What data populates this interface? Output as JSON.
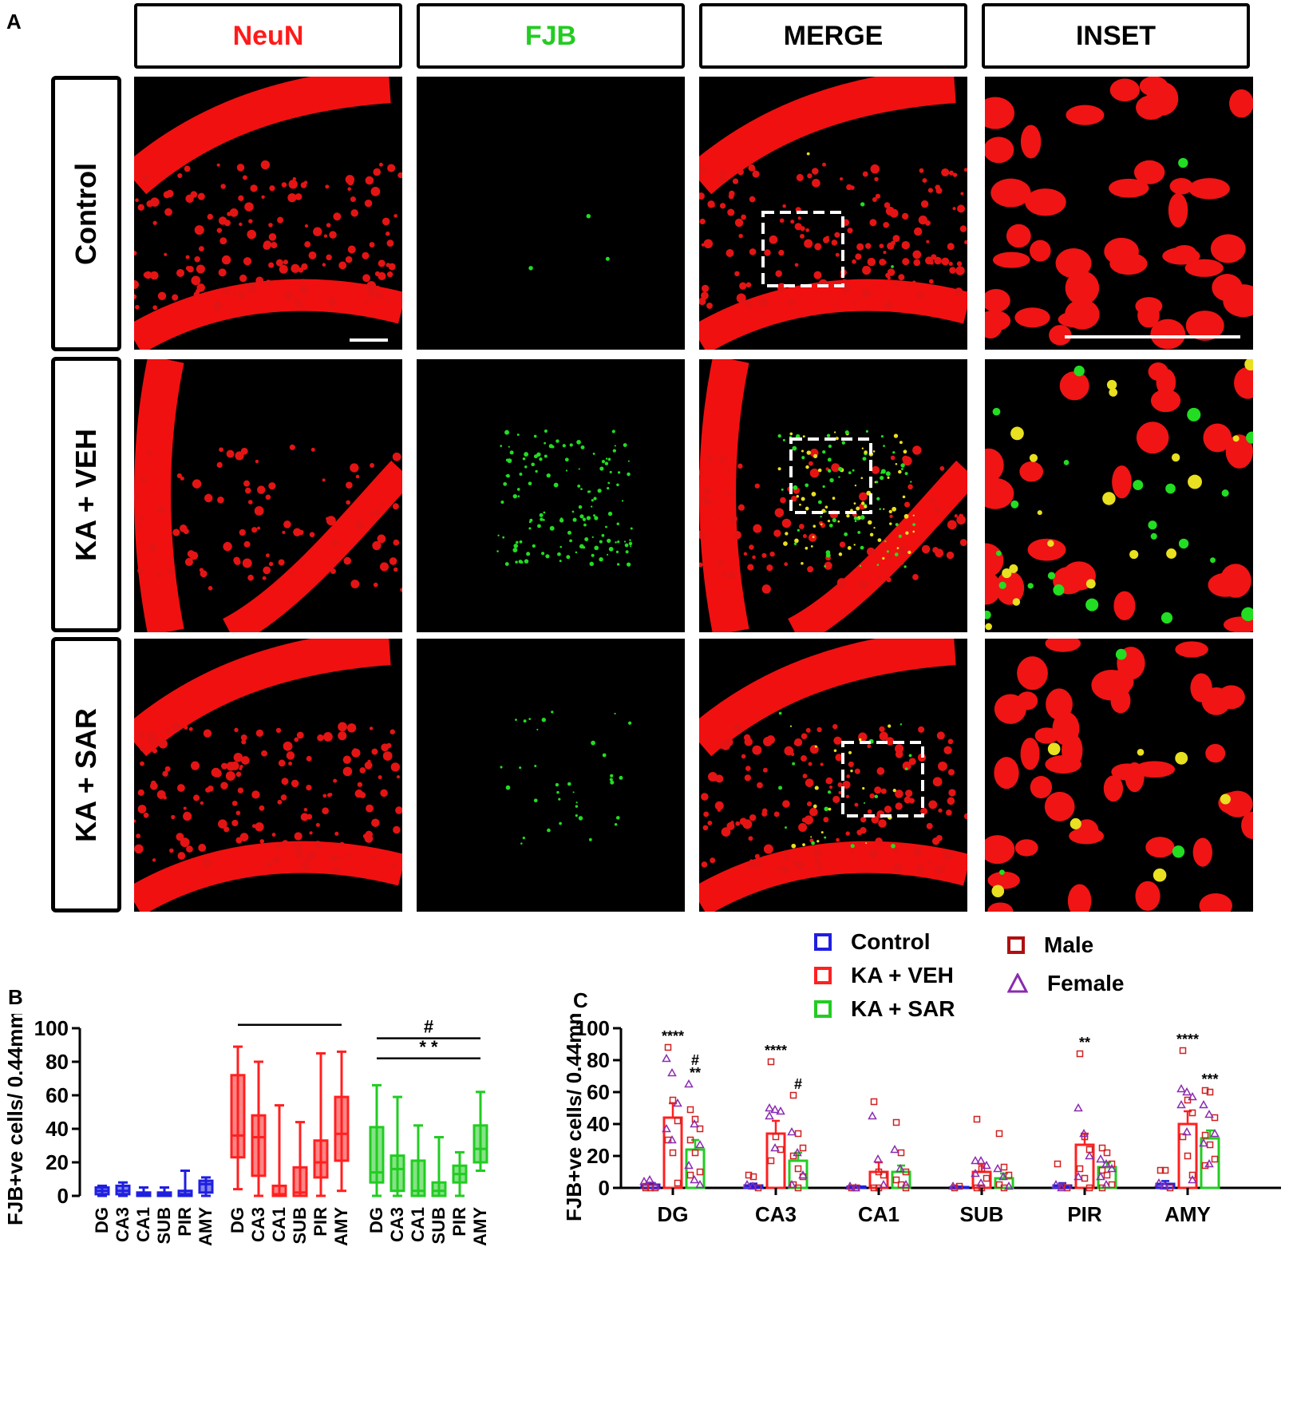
{
  "panels": {
    "a": "A",
    "b": "B",
    "c": "C"
  },
  "columns": [
    {
      "label": "NeuN",
      "color": "#ff1a1a"
    },
    {
      "label": "FJB",
      "color": "#22cc22"
    },
    {
      "label": "MERGE",
      "color": "#000000"
    },
    {
      "label": "INSET",
      "color": "#000000"
    }
  ],
  "rows": [
    "Control",
    "KA + VEH",
    "KA + SAR"
  ],
  "legend": {
    "groups": [
      {
        "label": "Control",
        "color": "#1f1fe0"
      },
      {
        "label": "KA + VEH",
        "color": "#ff2020"
      },
      {
        "label": "KA + SAR",
        "color": "#22cc22"
      }
    ],
    "sex": [
      {
        "label": "Male",
        "color": "#b01010",
        "marker": "square"
      },
      {
        "label": "Female",
        "color": "#8a2bb0",
        "marker": "triangle"
      }
    ]
  },
  "chart_data": [
    {
      "id": "B",
      "type": "box",
      "ylabel": "FJB+ve cells/ 0.44mm2",
      "ylim": [
        0,
        100
      ],
      "yticks": [
        0,
        20,
        40,
        60,
        80,
        100
      ],
      "groups": [
        {
          "name": "Control",
          "color": "#1f1fe0",
          "boxes": [
            {
              "region": "DG",
              "min": 0,
              "q1": 1,
              "median": 3,
              "q3": 5,
              "max": 6
            },
            {
              "region": "CA3",
              "min": 0,
              "q1": 1,
              "median": 3,
              "q3": 6,
              "max": 8
            },
            {
              "region": "CA1",
              "min": 0,
              "q1": 0,
              "median": 1,
              "q3": 2,
              "max": 5
            },
            {
              "region": "SUB",
              "min": 0,
              "q1": 0,
              "median": 1,
              "q3": 2,
              "max": 5
            },
            {
              "region": "PIR",
              "min": 0,
              "q1": 0,
              "median": 1,
              "q3": 3,
              "max": 15
            },
            {
              "region": "AMY",
              "min": 0,
              "q1": 2,
              "median": 7,
              "q3": 9,
              "max": 11
            }
          ]
        },
        {
          "name": "KA + VEH",
          "color": "#ff2020",
          "boxes": [
            {
              "region": "DG",
              "min": 4,
              "q1": 23,
              "median": 36,
              "q3": 72,
              "max": 89
            },
            {
              "region": "CA3",
              "min": 0,
              "q1": 12,
              "median": 35,
              "q3": 48,
              "max": 80
            },
            {
              "region": "CA1",
              "min": 0,
              "q1": 0,
              "median": 1,
              "q3": 6,
              "max": 54
            },
            {
              "region": "SUB",
              "min": 0,
              "q1": 0,
              "median": 2,
              "q3": 17,
              "max": 44
            },
            {
              "region": "PIR",
              "min": 0,
              "q1": 11,
              "median": 20,
              "q3": 33,
              "max": 85
            },
            {
              "region": "AMY",
              "min": 3,
              "q1": 21,
              "median": 37,
              "q3": 59,
              "max": 86
            }
          ]
        },
        {
          "name": "KA + SAR",
          "color": "#22cc22",
          "boxes": [
            {
              "region": "DG",
              "min": 0,
              "q1": 8,
              "median": 14,
              "q3": 41,
              "max": 66
            },
            {
              "region": "CA3",
              "min": 0,
              "q1": 3,
              "median": 16,
              "q3": 24,
              "max": 59
            },
            {
              "region": "CA1",
              "min": 0,
              "q1": 0,
              "median": 3,
              "q3": 21,
              "max": 42
            },
            {
              "region": "SUB",
              "min": 0,
              "q1": 0,
              "median": 3,
              "q3": 8,
              "max": 35
            },
            {
              "region": "PIR",
              "min": 0,
              "q1": 8,
              "median": 13,
              "q3": 18,
              "max": 26
            },
            {
              "region": "AMY",
              "min": 15,
              "q1": 20,
              "median": 28,
              "q3": 42,
              "max": 62
            }
          ]
        }
      ],
      "significance": [
        {
          "label": "* * * *",
          "group": 1,
          "y": 102
        },
        {
          "label": "#",
          "group": 2,
          "y": 94
        },
        {
          "label": "*   *",
          "group": 2,
          "y": 82
        }
      ]
    },
    {
      "id": "C",
      "type": "bar",
      "ylabel": "FJB+ve cells/ 0.44mm2",
      "ylim": [
        0,
        100
      ],
      "yticks": [
        0,
        20,
        40,
        60,
        80,
        100
      ],
      "categories": [
        "DG",
        "CA3",
        "CA1",
        "SUB",
        "PIR",
        "AMY"
      ],
      "series": [
        {
          "name": "Control",
          "color": "#1f1fe0",
          "values": [
            2,
            1.5,
            0.8,
            0.5,
            1.5,
            2.5
          ],
          "sem": [
            1.2,
            1.2,
            0.5,
            0.4,
            1.5,
            1.8
          ]
        },
        {
          "name": "KA + VEH",
          "color": "#ff2020",
          "values": [
            44,
            34,
            10,
            10,
            27,
            40
          ],
          "sem": [
            9,
            8,
            6,
            5,
            7,
            8
          ]
        },
        {
          "name": "KA + SAR",
          "color": "#22cc22",
          "values": [
            24,
            17,
            10,
            6,
            13,
            31
          ],
          "sem": [
            6,
            5,
            4,
            3,
            3,
            5
          ]
        }
      ],
      "points": {
        "male": [
          [
            [
              0,
              0,
              0,
              1
            ],
            [
              88,
              55,
              42,
              30,
              22,
              3
            ],
            [
              49,
              43,
              37,
              30,
              22,
              10,
              8
            ]
          ],
          [
            [
              8,
              7,
              0
            ],
            [
              79,
              32,
              24,
              17
            ],
            [
              58,
              34,
              25,
              20,
              12,
              7,
              2,
              0
            ]
          ],
          [
            [
              0,
              0
            ],
            [
              54,
              10,
              8,
              0,
              0
            ],
            [
              41,
              22,
              10,
              5,
              2,
              0
            ]
          ],
          [
            [
              0,
              1
            ],
            [
              43,
              12,
              6,
              0,
              0
            ],
            [
              34,
              13,
              8,
              2,
              0
            ]
          ],
          [
            [
              15,
              1,
              0
            ],
            [
              84,
              32,
              24,
              12,
              6,
              0
            ],
            [
              25,
              22,
              15,
              11,
              8,
              2,
              0
            ]
          ],
          [
            [
              11,
              11,
              0
            ],
            [
              86,
              55,
              47,
              32,
              20,
              8
            ],
            [
              61,
              60,
              44,
              33,
              27,
              18,
              14
            ]
          ]
        ],
        "female": [
          [
            [
              4,
              5,
              1
            ],
            [
              81,
              72,
              53,
              37,
              30
            ],
            [
              65,
              40,
              27,
              14,
              5,
              2
            ]
          ],
          [
            [
              2,
              1
            ],
            [
              50,
              49,
              48,
              45,
              25
            ],
            [
              35,
              22,
              8,
              2
            ]
          ],
          [
            [
              1,
              0
            ],
            [
              45,
              18,
              2
            ],
            [
              24,
              12,
              2
            ]
          ],
          [
            [
              1
            ],
            [
              17,
              17,
              14,
              9,
              3
            ],
            [
              12,
              7,
              1
            ]
          ],
          [
            [
              2,
              0
            ],
            [
              50,
              34,
              20,
              7
            ],
            [
              18,
              15,
              12,
              7,
              2
            ]
          ],
          [
            [
              3,
              1
            ],
            [
              62,
              60,
              57,
              52,
              35,
              5
            ],
            [
              52,
              46,
              34,
              28,
              15
            ]
          ]
        ]
      },
      "annotations": [
        {
          "cat": 0,
          "series": 1,
          "label": "****"
        },
        {
          "cat": 0,
          "series": 2,
          "label": "#"
        },
        {
          "cat": 0,
          "series": 2,
          "label": "**"
        },
        {
          "cat": 1,
          "series": 1,
          "label": "****"
        },
        {
          "cat": 1,
          "series": 2,
          "label": "#"
        },
        {
          "cat": 4,
          "series": 1,
          "label": "**"
        },
        {
          "cat": 5,
          "series": 1,
          "label": "****"
        },
        {
          "cat": 5,
          "series": 2,
          "label": "***"
        }
      ]
    }
  ]
}
